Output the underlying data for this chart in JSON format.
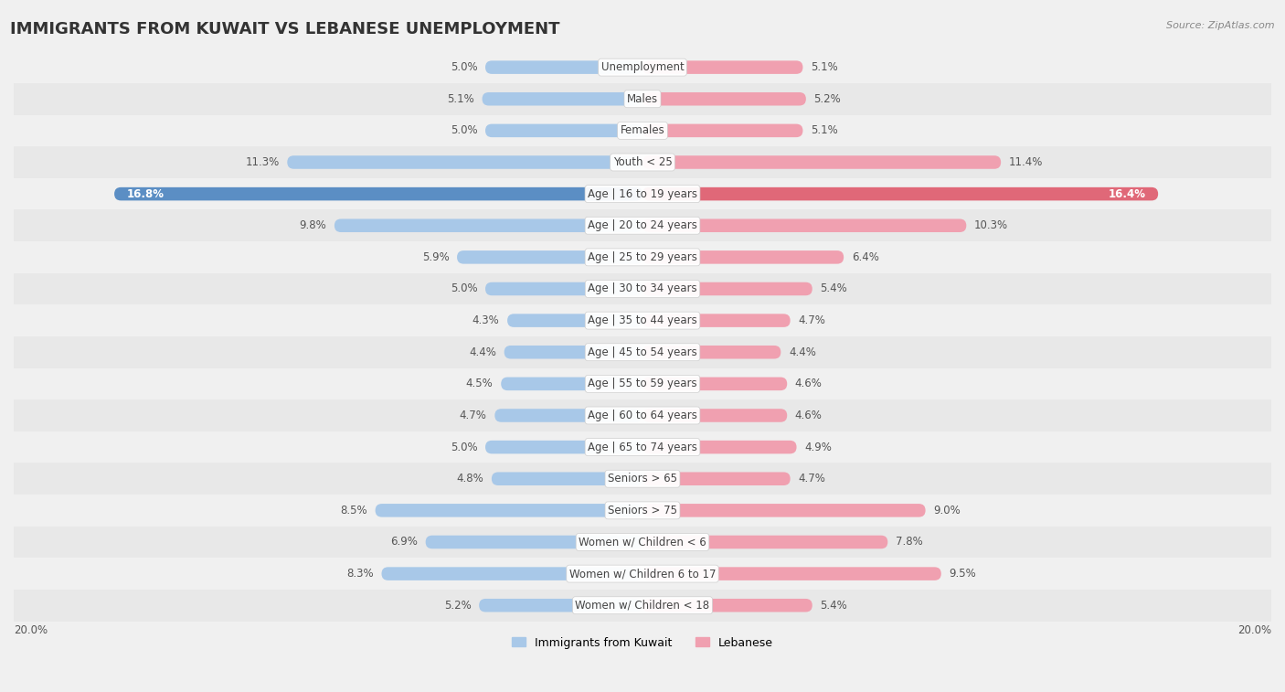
{
  "title": "IMMIGRANTS FROM KUWAIT VS LEBANESE UNEMPLOYMENT",
  "source": "Source: ZipAtlas.com",
  "categories": [
    "Unemployment",
    "Males",
    "Females",
    "Youth < 25",
    "Age | 16 to 19 years",
    "Age | 20 to 24 years",
    "Age | 25 to 29 years",
    "Age | 30 to 34 years",
    "Age | 35 to 44 years",
    "Age | 45 to 54 years",
    "Age | 55 to 59 years",
    "Age | 60 to 64 years",
    "Age | 65 to 74 years",
    "Seniors > 65",
    "Seniors > 75",
    "Women w/ Children < 6",
    "Women w/ Children 6 to 17",
    "Women w/ Children < 18"
  ],
  "kuwait_values": [
    5.0,
    5.1,
    5.0,
    11.3,
    16.8,
    9.8,
    5.9,
    5.0,
    4.3,
    4.4,
    4.5,
    4.7,
    5.0,
    4.8,
    8.5,
    6.9,
    8.3,
    5.2
  ],
  "lebanese_values": [
    5.1,
    5.2,
    5.1,
    11.4,
    16.4,
    10.3,
    6.4,
    5.4,
    4.7,
    4.4,
    4.6,
    4.6,
    4.9,
    4.7,
    9.0,
    7.8,
    9.5,
    5.4
  ],
  "kuwait_color": "#a8c8e8",
  "lebanese_color": "#f0a0b0",
  "highlight_kuwait_color": "#5b8ec4",
  "highlight_lebanese_color": "#e06878",
  "bar_height": 0.42,
  "xlim": 20.0,
  "legend_kuwait": "Immigrants from Kuwait",
  "legend_lebanese": "Lebanese",
  "bg_color": "#f0f0f0",
  "row_alt_color": "#e8e8e8",
  "row_base_color": "#f0f0f0",
  "title_fontsize": 13,
  "label_fontsize": 8.5,
  "value_fontsize": 8.5
}
